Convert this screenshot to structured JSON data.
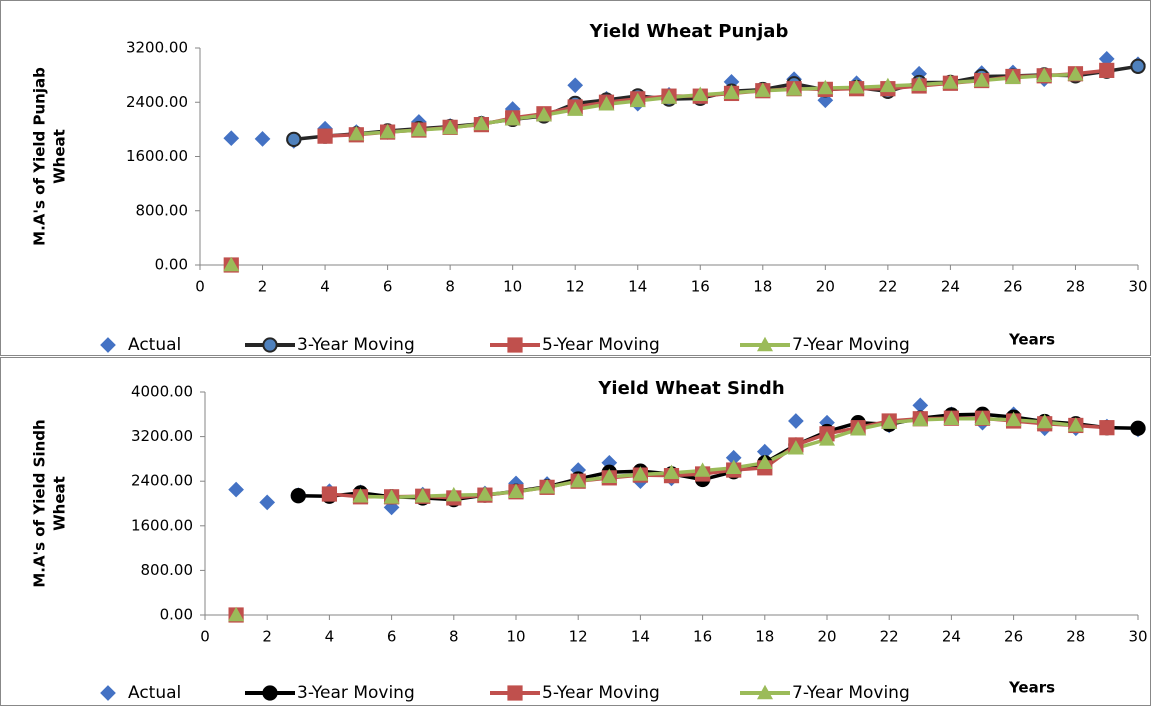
{
  "chart_data": [
    {
      "type": "line",
      "title": "Yield Wheat Punjab",
      "y_label": [
        "M.A's of Yield Punjab",
        "Wheat"
      ],
      "x_label": "Years",
      "x": [
        1,
        2,
        3,
        4,
        5,
        6,
        7,
        8,
        9,
        10,
        11,
        12,
        13,
        14,
        15,
        16,
        17,
        18,
        19,
        20,
        21,
        22,
        23,
        24,
        25,
        26,
        27,
        28,
        29,
        30
      ],
      "xlim": [
        0,
        30
      ],
      "xticks": [
        0,
        2,
        4,
        6,
        8,
        10,
        12,
        14,
        16,
        18,
        20,
        22,
        24,
        26,
        28,
        30
      ],
      "ylim": [
        0,
        3200
      ],
      "yticks": [
        {
          "value": 0,
          "label": "0.00"
        },
        {
          "value": 800,
          "label": "800.00"
        },
        {
          "value": 1600,
          "label": "1600.00"
        },
        {
          "value": 2400,
          "label": "2400.00"
        },
        {
          "value": 3200,
          "label": "3200.00"
        }
      ],
      "series": [
        {
          "name": "Actual",
          "color": "#4472c4",
          "marker": "diamond",
          "line": false,
          "values": [
            1870,
            1860,
            1830,
            2010,
            1960,
            1960,
            2110,
            2050,
            2090,
            2300,
            2200,
            2650,
            2450,
            2380,
            2510,
            2480,
            2700,
            2580,
            2740,
            2430,
            2680,
            2570,
            2820,
            2690,
            2830,
            2840,
            2740,
            2790,
            3040,
            2960
          ]
        },
        {
          "name": "3-Year Moving",
          "color": "#262626",
          "marker": "circle",
          "marker_fill": "#4f81bd",
          "line": true,
          "values": [
            null,
            null,
            1853,
            1900,
            1933,
            1977,
            2010,
            2040,
            2083,
            2147,
            2197,
            2383,
            2433,
            2493,
            2447,
            2457,
            2563,
            2587,
            2673,
            2583,
            2617,
            2560,
            2690,
            2693,
            2780,
            2787,
            2803,
            2790,
            2857,
            2930
          ]
        },
        {
          "name": "5-Year Moving",
          "color": "#c0504d",
          "marker": "square",
          "line": true,
          "values": [
            0,
            null,
            null,
            1900,
            1920,
            1960,
            1990,
            2030,
            2070,
            2170,
            2230,
            2330,
            2400,
            2450,
            2490,
            2490,
            2530,
            2570,
            2600,
            2590,
            2600,
            2600,
            2640,
            2680,
            2720,
            2780,
            2790,
            2820,
            2870,
            null
          ]
        },
        {
          "name": "7-Year Moving",
          "color": "#9bbb59",
          "marker": "triangle",
          "line": true,
          "values": [
            0,
            null,
            null,
            null,
            1930,
            1960,
            1990,
            2020,
            2080,
            2150,
            2210,
            2290,
            2370,
            2420,
            2470,
            2510,
            2540,
            2570,
            2590,
            2610,
            2620,
            2640,
            2660,
            2690,
            2720,
            2760,
            2790,
            2810,
            null,
            null
          ]
        }
      ]
    },
    {
      "type": "line",
      "title": "Yield Wheat Sindh",
      "y_label": [
        "M.A's of Yield Sindh",
        "Wheat"
      ],
      "x_label": "Years",
      "x": [
        1,
        2,
        3,
        4,
        5,
        6,
        7,
        8,
        9,
        10,
        11,
        12,
        13,
        14,
        15,
        16,
        17,
        18,
        19,
        20,
        21,
        22,
        23,
        24,
        25,
        26,
        27,
        28,
        29,
        30
      ],
      "xlim": [
        0,
        30
      ],
      "xticks": [
        0,
        2,
        4,
        6,
        8,
        10,
        12,
        14,
        16,
        18,
        20,
        22,
        24,
        26,
        28,
        30
      ],
      "ylim": [
        0,
        4000
      ],
      "yticks": [
        {
          "value": 0,
          "label": "0.00"
        },
        {
          "value": 800,
          "label": "800.00"
        },
        {
          "value": 1600,
          "label": "1600.00"
        },
        {
          "value": 2400,
          "label": "2400.00"
        },
        {
          "value": 3200,
          "label": "3200.00"
        },
        {
          "value": 4000,
          "label": "4000.00"
        }
      ],
      "series": [
        {
          "name": "Actual",
          "color": "#4472c4",
          "marker": "diamond",
          "line": false,
          "values": [
            2250,
            2020,
            2150,
            2220,
            2200,
            1930,
            2160,
            2120,
            2180,
            2360,
            2350,
            2600,
            2730,
            2400,
            2450,
            2450,
            2820,
            2930,
            3480,
            3450,
            3420,
            3400,
            3760,
            3600,
            3450,
            3600,
            3350,
            3350,
            3380,
            3330
          ]
        },
        {
          "name": "3-Year Moving",
          "color": "#000000",
          "marker": "circle",
          "marker_fill": "#000000",
          "line": true,
          "values": [
            null,
            null,
            2140,
            2130,
            2190,
            2120,
            2100,
            2070,
            2150,
            2220,
            2300,
            2440,
            2560,
            2580,
            2530,
            2430,
            2570,
            2730,
            3050,
            3290,
            3450,
            3420,
            3530,
            3590,
            3600,
            3550,
            3470,
            3430,
            3360,
            3350
          ]
        },
        {
          "name": "5-Year Moving",
          "color": "#c0504d",
          "marker": "square",
          "line": true,
          "values": [
            0,
            null,
            null,
            2170,
            2120,
            2120,
            2130,
            2100,
            2150,
            2210,
            2290,
            2400,
            2460,
            2510,
            2500,
            2530,
            2600,
            2640,
            3050,
            3250,
            3360,
            3480,
            3520,
            3530,
            3530,
            3480,
            3430,
            3400,
            3360,
            null
          ]
        },
        {
          "name": "7-Year Moving",
          "color": "#9bbb59",
          "marker": "triangle",
          "line": true,
          "values": [
            0,
            null,
            null,
            null,
            2130,
            2110,
            2130,
            2150,
            2160,
            2210,
            2290,
            2400,
            2480,
            2520,
            2550,
            2590,
            2640,
            2730,
            2990,
            3150,
            3330,
            3450,
            3500,
            3520,
            3520,
            3500,
            3460,
            3400,
            null,
            null
          ]
        }
      ]
    }
  ]
}
